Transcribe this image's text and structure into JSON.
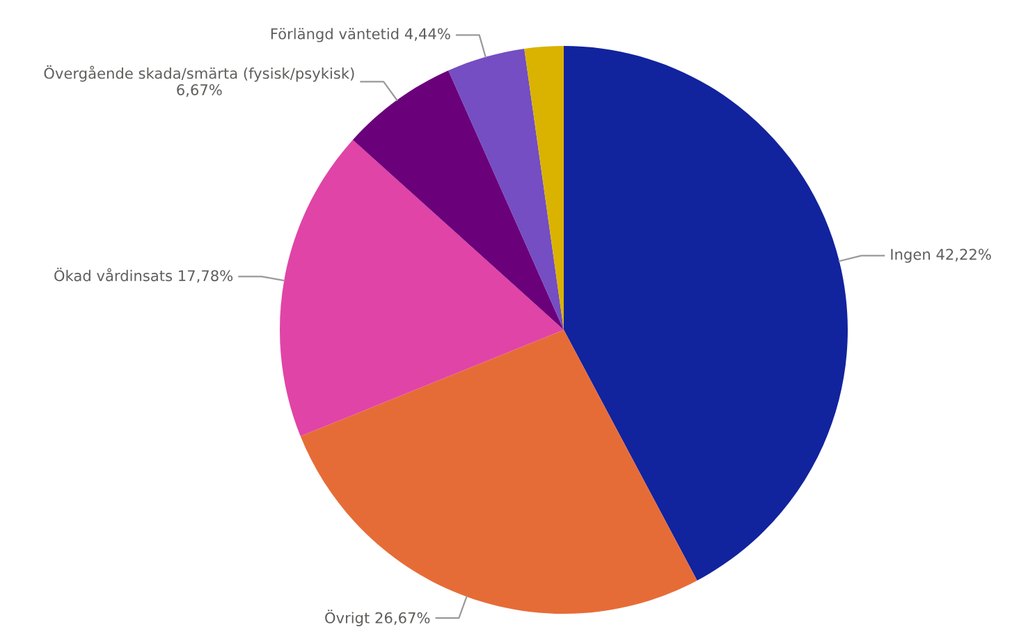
{
  "chart_data": {
    "type": "pie",
    "categories": [
      "Ingen",
      "Övrigt",
      "Ökad vårdinsats",
      "Övergående skada/smärta (fysisk/psykisk)",
      "Förlängd väntetid",
      null
    ],
    "values": [
      42.22,
      26.67,
      17.78,
      6.67,
      4.44,
      2.22
    ],
    "value_labels": [
      "42,22%",
      "26,67%",
      "17,78%",
      "6,67%",
      "4,44%",
      null
    ],
    "colors": [
      "#12239e",
      "#e66c37",
      "#e044a7",
      "#6b007b",
      "#744ec2",
      "#d9b300"
    ],
    "legend": false
  }
}
